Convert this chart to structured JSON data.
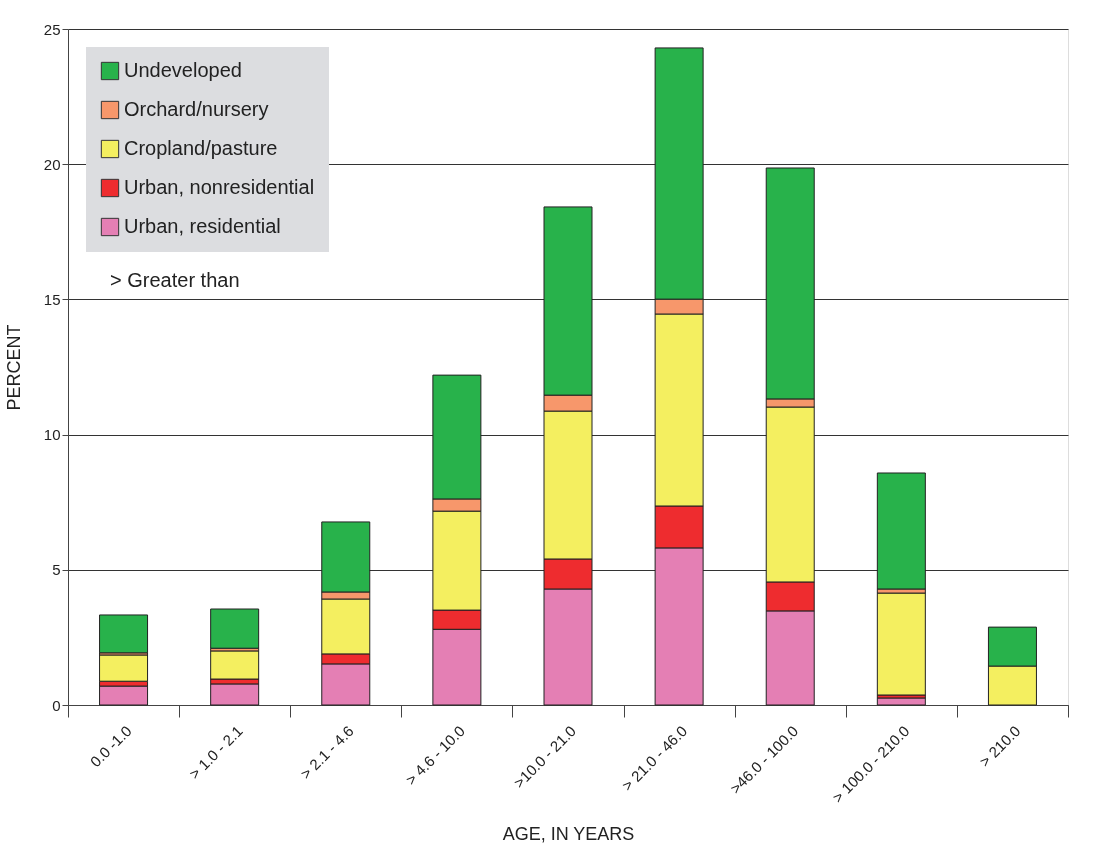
{
  "chart_data": {
    "type": "bar",
    "stacked": true,
    "xlabel": "AGE, IN YEARS",
    "ylabel": "PERCENT",
    "categories": [
      "0.0 -1.0",
      "> 1.0 - 2.1",
      "> 2.1 - 4.6",
      "> 4.6 - 10.0",
      ">10.0 - 21.0",
      "> 21.0 - 46.0",
      ">46.0 - 100.0",
      "> 100.0 - 210.0",
      "> 210.0"
    ],
    "series": [
      {
        "name": "Urban, residential",
        "color": "#e47fb4",
        "values": [
          0.7,
          0.78,
          1.52,
          2.8,
          4.29,
          5.81,
          3.48,
          0.26,
          null
        ]
      },
      {
        "name": "Urban, nonresidential",
        "color": "#ee2c2f",
        "values": [
          0.18,
          0.18,
          0.37,
          0.71,
          1.11,
          1.55,
          1.07,
          0.11,
          null
        ]
      },
      {
        "name": "Cropland/pasture",
        "color": "#f4ef60",
        "values": [
          0.97,
          1.04,
          2.03,
          3.66,
          5.47,
          7.1,
          6.47,
          3.77,
          1.44
        ]
      },
      {
        "name": "Orchard/nursery",
        "color": "#f7976b",
        "values": [
          0.08,
          0.1,
          0.26,
          0.45,
          0.59,
          0.55,
          0.3,
          0.15,
          null
        ]
      },
      {
        "name": "Undeveloped",
        "color": "#28b24b",
        "values": [
          1.4,
          1.45,
          2.59,
          4.58,
          6.96,
          9.29,
          8.54,
          4.29,
          1.44
        ]
      }
    ],
    "ylim": [
      0,
      25
    ],
    "yticks": [
      0,
      5,
      10,
      15,
      20,
      25
    ],
    "grid": "y",
    "legend": "top left",
    "annotations": [
      ">  Greater than"
    ]
  }
}
